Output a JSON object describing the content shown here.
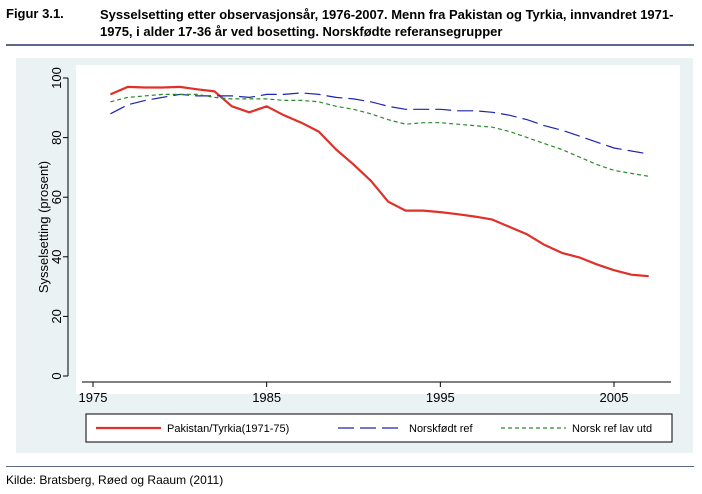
{
  "figure": {
    "label": "Figur 3.1.",
    "title": "Sysselsetting etter observasjonsår, 1976-2007. Menn fra Pakistan og Tyrkia, innvandret 1971-1975, i alder 17-36 år ved bosetting. Norskfødte referansegrupper"
  },
  "source": "Kilde: Bratsberg, Røed og Raaum (2011)",
  "colors": {
    "background": "#eaf2f3",
    "plot_area": "#ffffff",
    "pakistan": "#e0302a",
    "norskfodt": "#1f24b0",
    "lav_utd": "#2a8a2a"
  },
  "chart_data": {
    "type": "line",
    "ylabel": "Sysselsetting (prosent)",
    "xlabel": "",
    "xlim": [
      1974,
      2008
    ],
    "ylim": [
      0,
      100
    ],
    "xticks": [
      1975,
      1985,
      1995,
      2005
    ],
    "yticks": [
      0,
      20,
      40,
      60,
      80,
      100
    ],
    "grid": false,
    "legend_position": "bottom",
    "x": [
      1976,
      1977,
      1978,
      1979,
      1980,
      1981,
      1982,
      1983,
      1984,
      1985,
      1986,
      1987,
      1988,
      1989,
      1990,
      1991,
      1992,
      1993,
      1994,
      1995,
      1996,
      1997,
      1998,
      1999,
      2000,
      2001,
      2002,
      2003,
      2004,
      2005,
      2006,
      2007
    ],
    "series": [
      {
        "name": "Pakistan/Tyrkia(1971-75)",
        "style": "solid",
        "values": [
          94.5,
          97.0,
          96.8,
          96.8,
          97.0,
          96.2,
          95.5,
          90.5,
          88.5,
          90.5,
          87.5,
          85.0,
          82.0,
          76.0,
          71.0,
          65.5,
          58.5,
          55.5,
          55.5,
          55.0,
          54.3,
          53.5,
          52.5,
          50.0,
          47.5,
          44.0,
          41.3,
          39.8,
          37.5,
          35.5,
          34.0,
          33.5
        ]
      },
      {
        "name": "Norskfødt ref",
        "style": "longdash",
        "values": [
          88.0,
          91.0,
          92.5,
          93.5,
          94.5,
          94.0,
          94.0,
          94.0,
          93.5,
          94.5,
          94.5,
          95.0,
          94.5,
          93.5,
          93.0,
          92.0,
          90.5,
          89.5,
          89.5,
          89.5,
          89.0,
          89.0,
          88.5,
          87.5,
          86.0,
          84.0,
          82.5,
          80.5,
          78.5,
          76.5,
          75.5,
          74.5
        ]
      },
      {
        "name": "Norsk ref lav utd",
        "style": "shortdash",
        "values": [
          92.0,
          93.5,
          94.0,
          94.5,
          94.5,
          94.5,
          93.5,
          93.0,
          93.0,
          93.0,
          92.5,
          92.5,
          92.0,
          90.5,
          89.5,
          88.0,
          86.0,
          84.5,
          85.0,
          85.0,
          84.5,
          84.0,
          83.5,
          82.0,
          80.0,
          78.0,
          76.0,
          73.5,
          71.0,
          69.0,
          68.0,
          67.0
        ]
      }
    ]
  }
}
